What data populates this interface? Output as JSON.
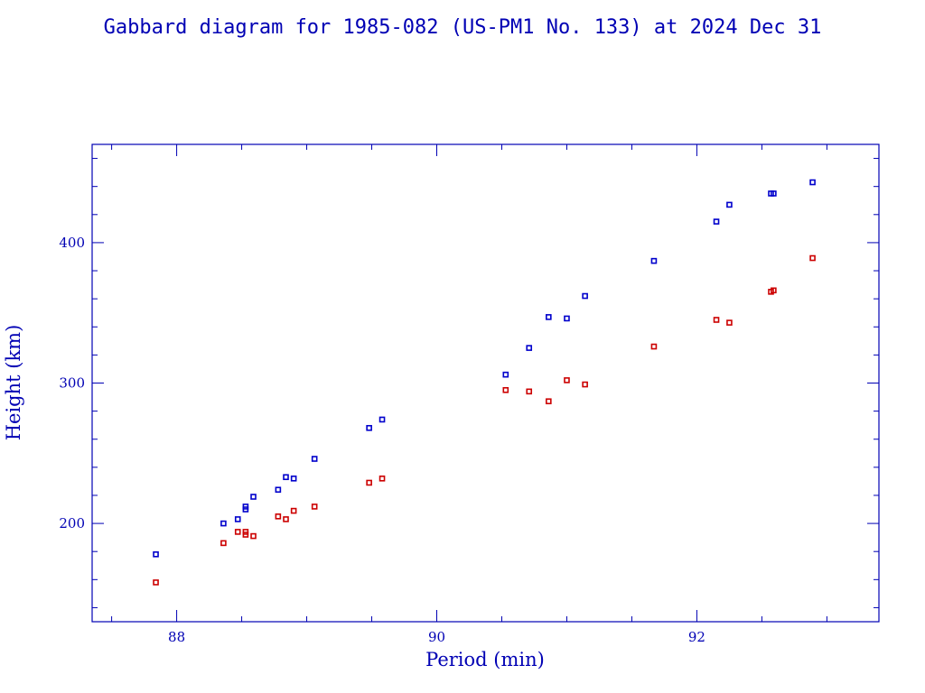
{
  "chart_data": {
    "type": "scatter",
    "title": "Gabbard diagram for 1985-082 (US-PM1 No. 133) at 2024 Dec 31",
    "xlabel": "Period (min)",
    "ylabel": "Height (km)",
    "xlim": [
      87.35,
      93.4
    ],
    "ylim": [
      130,
      470
    ],
    "x_major_ticks": [
      88,
      90,
      92
    ],
    "x_minor_step": 0.5,
    "y_major_ticks": [
      200,
      300,
      400
    ],
    "y_minor_step": 20,
    "grid": false,
    "colors": {
      "axes": "#0000b4",
      "apogee": "#0000cc",
      "perigee": "#cc0000"
    },
    "series": [
      {
        "color": "#0000cc",
        "points": [
          [
            87.84,
            178
          ],
          [
            88.36,
            200
          ],
          [
            88.47,
            203
          ],
          [
            88.53,
            210
          ],
          [
            88.53,
            212
          ],
          [
            88.59,
            219
          ],
          [
            88.78,
            224
          ],
          [
            88.84,
            233
          ],
          [
            88.9,
            232
          ],
          [
            89.06,
            246
          ],
          [
            89.48,
            268
          ],
          [
            89.58,
            274
          ],
          [
            90.53,
            306
          ],
          [
            90.71,
            325
          ],
          [
            90.86,
            347
          ],
          [
            91.0,
            346
          ],
          [
            91.14,
            362
          ],
          [
            91.67,
            387
          ],
          [
            92.15,
            415
          ],
          [
            92.25,
            427
          ],
          [
            92.57,
            435
          ],
          [
            92.59,
            435
          ],
          [
            92.89,
            443
          ]
        ]
      },
      {
        "color": "#cc0000",
        "points": [
          [
            87.84,
            158
          ],
          [
            88.36,
            186
          ],
          [
            88.47,
            194
          ],
          [
            88.53,
            194
          ],
          [
            88.53,
            192
          ],
          [
            88.59,
            191
          ],
          [
            88.78,
            205
          ],
          [
            88.84,
            203
          ],
          [
            88.9,
            209
          ],
          [
            89.06,
            212
          ],
          [
            89.48,
            229
          ],
          [
            89.58,
            232
          ],
          [
            90.53,
            295
          ],
          [
            90.71,
            294
          ],
          [
            90.86,
            287
          ],
          [
            91.0,
            302
          ],
          [
            91.14,
            299
          ],
          [
            91.67,
            326
          ],
          [
            92.15,
            345
          ],
          [
            92.25,
            343
          ],
          [
            92.57,
            365
          ],
          [
            92.59,
            366
          ],
          [
            92.89,
            389
          ]
        ]
      }
    ]
  }
}
